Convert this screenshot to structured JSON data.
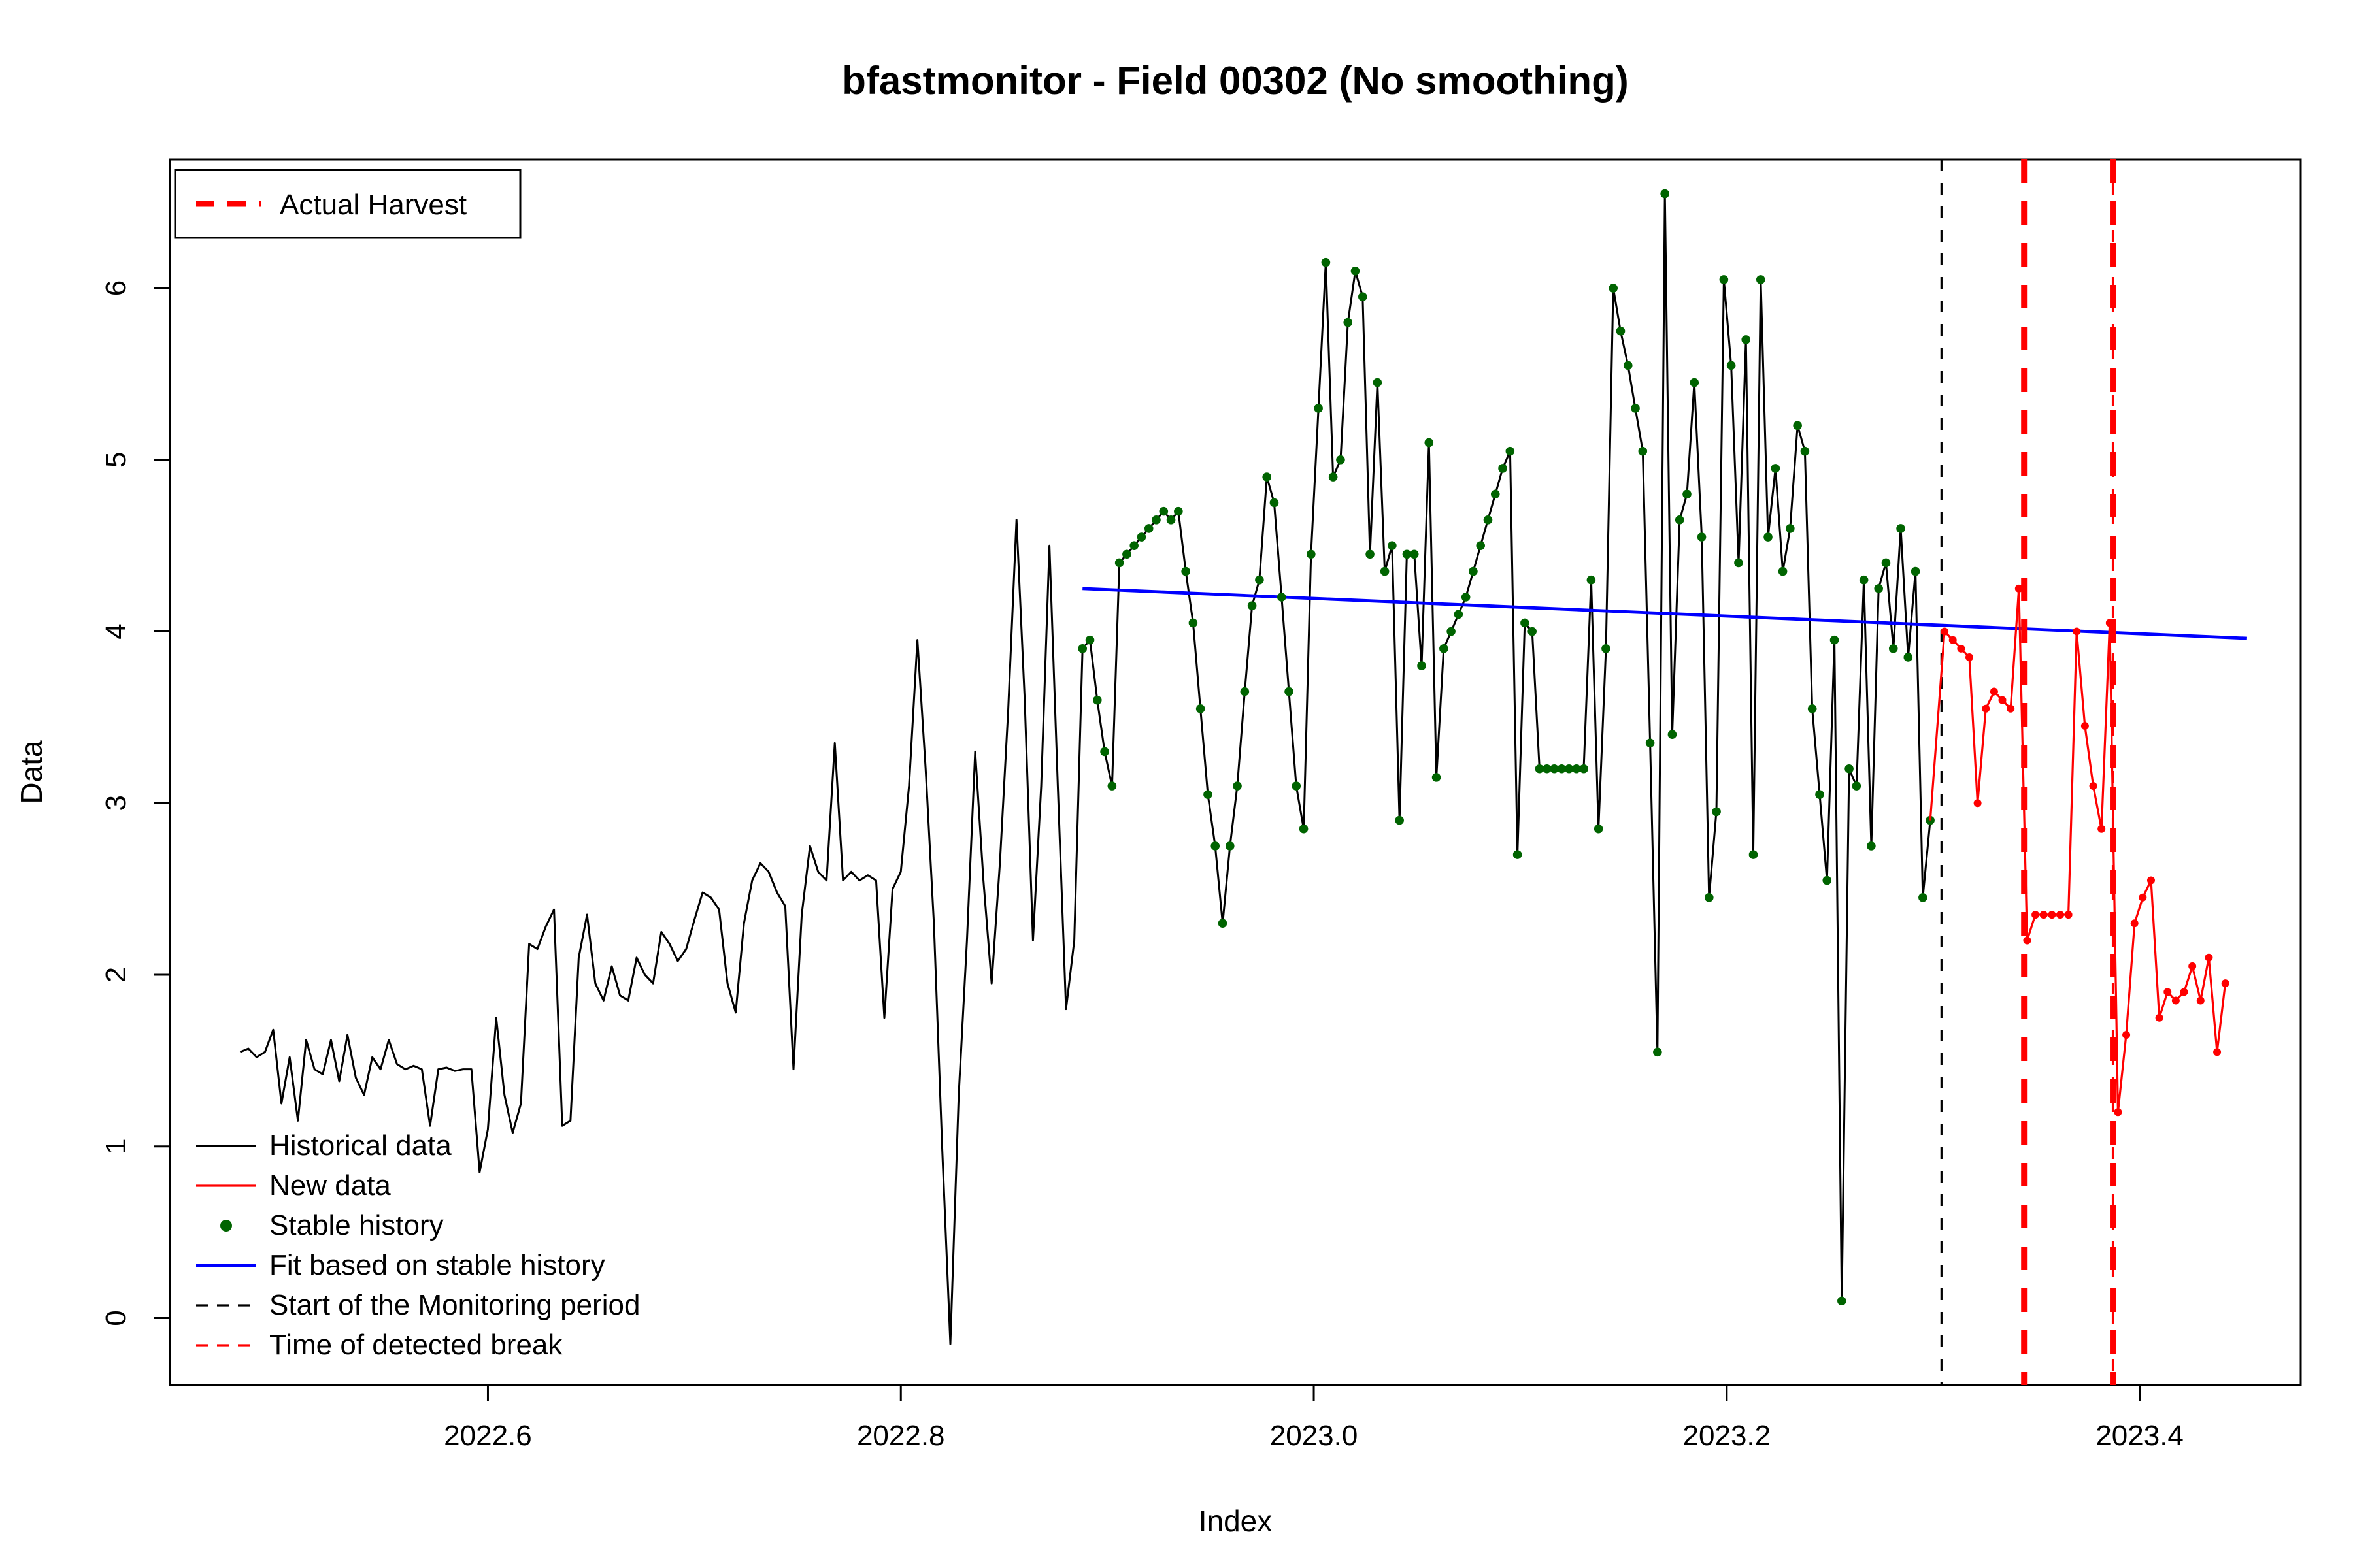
{
  "title": "bfastmonitor - Field 00302 (No smoothing)",
  "x_axis": {
    "label": "Index",
    "ticks": [
      2022.6,
      2022.8,
      2023.0,
      2023.2,
      2023.4
    ],
    "tick_labels": [
      "2022.6",
      "2022.8",
      "2023.0",
      "2023.2",
      "2023.4"
    ]
  },
  "y_axis": {
    "label": "Data",
    "ticks": [
      0,
      1,
      2,
      3,
      4,
      5,
      6
    ],
    "tick_labels": [
      "0",
      "1",
      "2",
      "3",
      "4",
      "5",
      "6"
    ]
  },
  "colors": {
    "historical": "#000000",
    "new_data": "#ff0000",
    "stable_history": "#006400",
    "fit": "#0000ff",
    "monitor_start": "#000000",
    "detected_break": "#ff0000",
    "harvest": "#ff0000",
    "background": "#ffffff"
  },
  "legend_box": {
    "label": "Actual Harvest"
  },
  "legend_items": [
    {
      "label": "Historical data",
      "type": "line",
      "color": "#000000",
      "dash": "none"
    },
    {
      "label": "New data",
      "type": "line",
      "color": "#ff0000",
      "dash": "none"
    },
    {
      "label": "Stable history",
      "type": "point",
      "color": "#006400"
    },
    {
      "label": "Fit based on stable history",
      "type": "line",
      "color": "#0000ff",
      "dash": "none"
    },
    {
      "label": "Start of the Monitoring period",
      "type": "line",
      "color": "#000000",
      "dash": "dashed"
    },
    {
      "label": "Time of detected break",
      "type": "line",
      "color": "#ff0000",
      "dash": "dashed"
    }
  ],
  "chart_data": {
    "type": "line",
    "title": "bfastmonitor - Field 00302 (No smoothing)",
    "xlabel": "Index",
    "ylabel": "Data",
    "xlim": [
      2022.446,
      2023.478
    ],
    "ylim": [
      -0.39,
      6.75
    ],
    "grid": false,
    "series": [
      {
        "name": "Historical data",
        "color": "#000000",
        "markers": false,
        "x_start": 2022.48,
        "x_step": 0.004,
        "values": [
          1.55,
          1.57,
          1.52,
          1.55,
          1.68,
          1.25,
          1.52,
          1.15,
          1.62,
          1.45,
          1.42,
          1.62,
          1.38,
          1.65,
          1.4,
          1.3,
          1.52,
          1.45,
          1.62,
          1.48,
          1.45,
          1.47,
          1.45,
          1.12,
          1.45,
          1.46,
          1.44,
          1.45,
          1.45,
          0.85,
          1.1,
          1.75,
          1.3,
          1.08,
          1.25,
          2.18,
          2.15,
          2.28,
          2.38,
          1.12,
          1.15,
          2.1,
          2.35,
          1.95,
          1.85,
          2.05,
          1.88,
          1.85,
          2.1,
          2.0,
          1.95,
          2.25,
          2.18,
          2.08,
          2.15,
          2.32,
          2.48,
          2.45,
          2.38,
          1.95,
          1.78,
          2.3,
          2.55,
          2.65,
          2.6,
          2.48,
          2.4,
          1.45,
          2.35,
          2.75,
          2.6,
          2.55,
          3.35,
          2.55,
          2.6,
          2.55,
          2.58,
          2.55,
          1.75,
          2.5,
          2.6,
          3.1,
          3.95,
          3.2,
          2.3,
          1.0,
          -0.15,
          1.3,
          2.2,
          3.3,
          2.55,
          1.95,
          2.65,
          3.55,
          4.65,
          3.6,
          2.2,
          3.1,
          4.5,
          3.1,
          1.8,
          2.2
        ]
      },
      {
        "name": "Stable history",
        "color": "#006400",
        "markers": true,
        "x_start": 2022.888,
        "x_step": 0.00357,
        "values": [
          3.9,
          3.95,
          3.6,
          3.3,
          3.1,
          4.4,
          4.45,
          4.5,
          4.55,
          4.6,
          4.65,
          4.7,
          4.65,
          4.7,
          4.35,
          4.05,
          3.55,
          3.05,
          2.75,
          2.3,
          2.75,
          3.1,
          3.65,
          4.15,
          4.3,
          4.9,
          4.75,
          4.2,
          3.65,
          3.1,
          2.85,
          4.45,
          5.3,
          6.15,
          4.9,
          5.0,
          5.8,
          6.1,
          5.95,
          4.45,
          5.45,
          4.35,
          4.5,
          2.9,
          4.45,
          4.45,
          3.8,
          5.1,
          3.15,
          3.9,
          4.0,
          4.1,
          4.2,
          4.35,
          4.5,
          4.65,
          4.8,
          4.95,
          5.05,
          2.7,
          4.05,
          4.0,
          3.2,
          3.2,
          3.2,
          3.2,
          3.2,
          3.2,
          3.2,
          4.3,
          2.85,
          3.9,
          6.0,
          5.75,
          5.55,
          5.3,
          5.05,
          3.35,
          1.55,
          6.55,
          3.4,
          4.65,
          4.8,
          5.45,
          4.55,
          2.45,
          2.95,
          6.05,
          5.55,
          4.4,
          5.7,
          2.7,
          6.05,
          4.55,
          4.95,
          4.35,
          4.6,
          5.2,
          5.05,
          3.55,
          3.05,
          2.55,
          3.95,
          0.1,
          3.2,
          3.1,
          4.3,
          2.75,
          4.25,
          4.4,
          3.9,
          4.6,
          3.85,
          4.35,
          2.45,
          2.9
        ]
      },
      {
        "name": "New data",
        "color": "#ff0000",
        "markers": true,
        "x_start": 2023.3055,
        "x_step": 0.004,
        "values": [
          4.0,
          3.95,
          3.9,
          3.85,
          3.0,
          3.55,
          3.65,
          3.6,
          3.55,
          4.25,
          2.2,
          2.35,
          2.35,
          2.35,
          2.35,
          2.35,
          4.0,
          3.45,
          3.1,
          2.85,
          4.05,
          1.2,
          1.65,
          2.3,
          2.45,
          2.55,
          1.75,
          1.9,
          1.85,
          1.9,
          2.05,
          1.85,
          2.1,
          1.55,
          1.95
        ]
      },
      {
        "name": "Fit based on stable history",
        "color": "#0000ff",
        "markers": false,
        "x": [
          2022.888,
          2023.452
        ],
        "y": [
          4.25,
          3.96
        ]
      }
    ],
    "vlines": [
      {
        "name": "monitor-start",
        "x": 2023.304,
        "color": "#000000",
        "style": "dashed",
        "width": 1
      },
      {
        "name": "detected-break",
        "x": 2023.387,
        "color": "#ff0000",
        "style": "dashed",
        "width": 1
      },
      {
        "name": "harvest-1",
        "x": 2023.344,
        "color": "#ff0000",
        "style": "dashed",
        "width": 3
      },
      {
        "name": "harvest-2",
        "x": 2023.387,
        "color": "#ff0000",
        "style": "dashed",
        "width": 3
      }
    ],
    "legend_position": "bottomleft",
    "legend_box_position": "topleft"
  }
}
